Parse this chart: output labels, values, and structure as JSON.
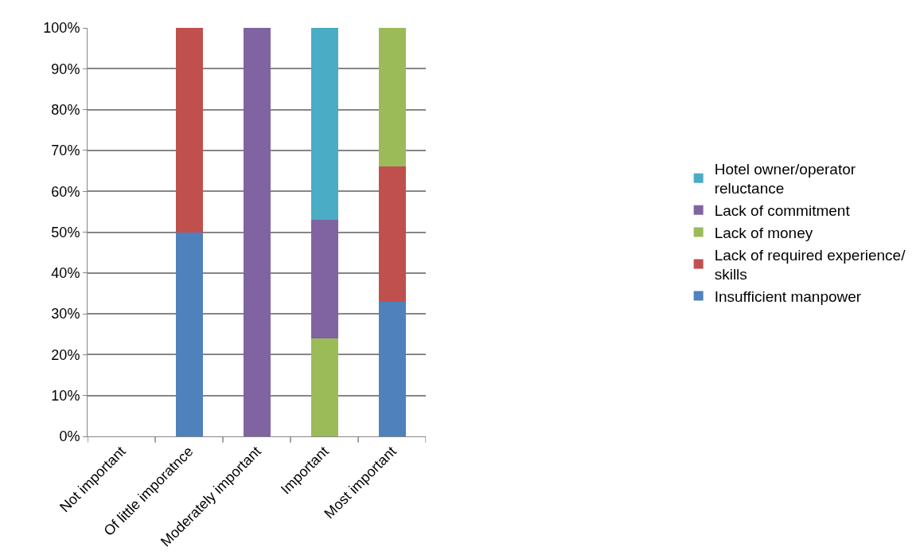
{
  "chart_data": {
    "type": "bar",
    "stacked": true,
    "categories": [
      "Not important",
      "Of little imporatnce",
      "Moderately important",
      "Important",
      "Most important"
    ],
    "series": [
      {
        "name": "Insufficient manpower",
        "color": "#4f81bd",
        "values": [
          0,
          50,
          0,
          0,
          33
        ]
      },
      {
        "name": "Lack of required experience/ skills",
        "color": "#c0504d",
        "values": [
          0,
          50,
          0,
          0,
          33
        ]
      },
      {
        "name": "Lack of money",
        "color": "#9bbb59",
        "values": [
          0,
          0,
          0,
          24,
          34
        ]
      },
      {
        "name": "Lack of commitment",
        "color": "#8064a2",
        "values": [
          0,
          0,
          100,
          29,
          0
        ]
      },
      {
        "name": "Hotel owner/operator reluctance",
        "color": "#4bacc6",
        "values": [
          0,
          0,
          0,
          47,
          0
        ]
      }
    ],
    "ylim": [
      0,
      100
    ],
    "yticks": [
      {
        "value": 0,
        "label": "0%"
      },
      {
        "value": 10,
        "label": "10%"
      },
      {
        "value": 20,
        "label": "20%"
      },
      {
        "value": 30,
        "label": "30%"
      },
      {
        "value": 40,
        "label": "40%"
      },
      {
        "value": 50,
        "label": "50%"
      },
      {
        "value": 60,
        "label": "60%"
      },
      {
        "value": 70,
        "label": "70%"
      },
      {
        "value": 80,
        "label": "80%"
      },
      {
        "value": 90,
        "label": "90%"
      },
      {
        "value": 100,
        "label": "100%"
      }
    ],
    "grid": "y",
    "legend": "right"
  }
}
